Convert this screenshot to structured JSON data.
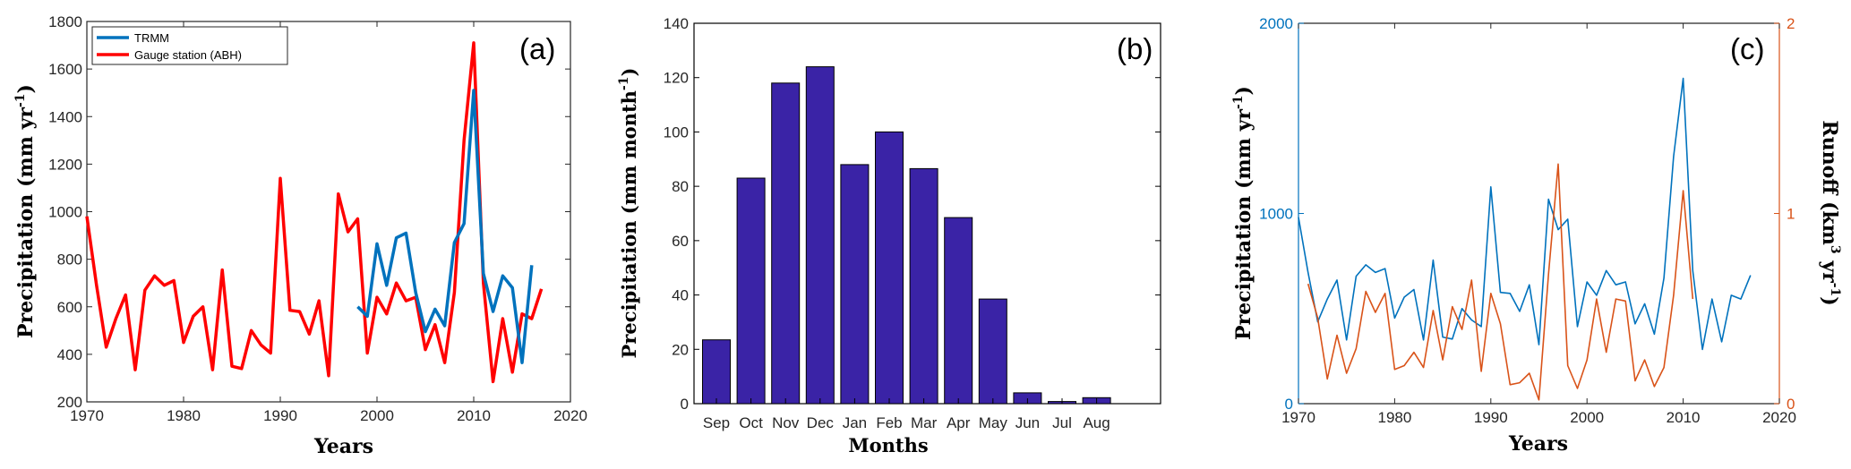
{
  "chart_data": [
    {
      "type": "line",
      "panel_label": "(a)",
      "xlabel": "Years",
      "ylabel": "Precipitation (mm yr",
      "ylabel_sup": "-1",
      "ylabel_end": ")",
      "xlim": [
        1970,
        2020
      ],
      "ylim": [
        200,
        1800
      ],
      "xticks": [
        "1970",
        "1980",
        "1990",
        "2000",
        "2010",
        "2020"
      ],
      "yticks": [
        "200",
        "400",
        "600",
        "800",
        "1000",
        "1200",
        "1400",
        "1600",
        "1800"
      ],
      "legend_position": "top-left",
      "series": [
        {
          "name": "TRMM",
          "color": "#0072BD",
          "x": [
            1998,
            1999,
            2000,
            2001,
            2002,
            2003,
            2004,
            2005,
            2006,
            2007,
            2008,
            2009,
            2010,
            2011,
            2012,
            2013,
            2014,
            2015,
            2016
          ],
          "y": [
            600,
            560,
            865,
            690,
            890,
            910,
            660,
            495,
            590,
            520,
            870,
            950,
            1510,
            740,
            580,
            730,
            680,
            365,
            775
          ]
        },
        {
          "name": "Gauge station (ABH)",
          "color": "#FF0000",
          "x": [
            1970,
            1971,
            1972,
            1973,
            1974,
            1975,
            1976,
            1977,
            1978,
            1979,
            1980,
            1981,
            1982,
            1983,
            1984,
            1985,
            1986,
            1987,
            1988,
            1989,
            1990,
            1991,
            1992,
            1993,
            1994,
            1995,
            1996,
            1997,
            1998,
            1999,
            2000,
            2001,
            2002,
            2003,
            2004,
            2005,
            2006,
            2007,
            2008,
            2009,
            2010,
            2011,
            2012,
            2013,
            2014,
            2015,
            2016,
            2017
          ],
          "y": [
            980,
            690,
            430,
            550,
            650,
            335,
            670,
            730,
            690,
            710,
            450,
            560,
            600,
            335,
            755,
            350,
            340,
            500,
            440,
            405,
            1140,
            585,
            580,
            485,
            625,
            310,
            1075,
            915,
            970,
            405,
            640,
            570,
            700,
            625,
            640,
            420,
            525,
            365,
            660,
            1300,
            1710,
            700,
            285,
            550,
            325,
            570,
            550,
            675
          ]
        }
      ]
    },
    {
      "type": "bar",
      "panel_label": "(b)",
      "xlabel": "Months",
      "ylabel": "Precipitation (mm month",
      "ylabel_sup": "-1",
      "ylabel_end": ")",
      "ylim": [
        0,
        140
      ],
      "yticks": [
        "0",
        "20",
        "40",
        "60",
        "80",
        "100",
        "120",
        "140"
      ],
      "categories": [
        "Sep",
        "Oct",
        "Nov",
        "Dec",
        "Jan",
        "Feb",
        "Mar",
        "Apr",
        "May",
        "Jun",
        "Jul",
        "Aug"
      ],
      "values": [
        23.5,
        83,
        118,
        124,
        88,
        100,
        86.5,
        68.5,
        38.5,
        4,
        0.8,
        2.2
      ],
      "bar_color": "#3A23A6"
    },
    {
      "type": "line",
      "panel_label": "(c)",
      "xlabel": "Years",
      "ylabel_left": "Precipitation (mm yr",
      "ylabel_left_sup": "-1",
      "ylabel_left_end": ")",
      "ylabel_right": "Runoff (km",
      "ylabel_right_sup": "3",
      "ylabel_right_mid": " yr",
      "ylabel_right_sup2": "-1",
      "ylabel_right_end": ")",
      "xlim": [
        1970,
        2020
      ],
      "ylim_left": [
        0,
        2000
      ],
      "ylim_right": [
        0,
        2
      ],
      "xticks": [
        "1970",
        "1980",
        "1990",
        "2000",
        "2010",
        "2020"
      ],
      "yticks_left": [
        "0",
        "1000",
        "2000"
      ],
      "yticks_right": [
        "0",
        "1",
        "2"
      ],
      "left_color": "#0072BD",
      "right_color": "#D95319",
      "series": [
        {
          "axis": "left",
          "color": "#0072BD",
          "x": [
            1970,
            1971,
            1972,
            1973,
            1974,
            1975,
            1976,
            1977,
            1978,
            1979,
            1980,
            1981,
            1982,
            1983,
            1984,
            1985,
            1986,
            1987,
            1988,
            1989,
            1990,
            1991,
            1992,
            1993,
            1994,
            1995,
            1996,
            1997,
            1998,
            1999,
            2000,
            2001,
            2002,
            2003,
            2004,
            2005,
            2006,
            2007,
            2008,
            2009,
            2010,
            2011,
            2012,
            2013,
            2014,
            2015,
            2016,
            2017
          ],
          "y": [
            980,
            690,
            430,
            550,
            650,
            335,
            670,
            730,
            690,
            710,
            450,
            560,
            600,
            335,
            755,
            350,
            340,
            500,
            440,
            405,
            1140,
            585,
            580,
            485,
            625,
            310,
            1075,
            915,
            970,
            405,
            640,
            570,
            700,
            625,
            640,
            420,
            525,
            365,
            660,
            1300,
            1710,
            700,
            285,
            550,
            325,
            570,
            550,
            675
          ]
        },
        {
          "axis": "right",
          "color": "#D95319",
          "x": [
            1971,
            1972,
            1973,
            1974,
            1975,
            1976,
            1977,
            1978,
            1979,
            1980,
            1981,
            1982,
            1983,
            1984,
            1985,
            1986,
            1987,
            1988,
            1989,
            1990,
            1991,
            1992,
            1993,
            1994,
            1995,
            1996,
            1997,
            1998,
            1999,
            2000,
            2001,
            2002,
            2003,
            2004,
            2005,
            2006,
            2007,
            2008,
            2009,
            2010,
            2011
          ],
          "y": [
            0.63,
            0.45,
            0.13,
            0.36,
            0.16,
            0.29,
            0.59,
            0.48,
            0.58,
            0.18,
            0.2,
            0.27,
            0.19,
            0.49,
            0.23,
            0.51,
            0.39,
            0.65,
            0.17,
            0.58,
            0.42,
            0.1,
            0.11,
            0.16,
            0.02,
            0.68,
            1.26,
            0.2,
            0.08,
            0.23,
            0.55,
            0.27,
            0.55,
            0.54,
            0.12,
            0.23,
            0.09,
            0.19,
            0.57,
            1.12,
            0.55
          ]
        }
      ]
    }
  ]
}
